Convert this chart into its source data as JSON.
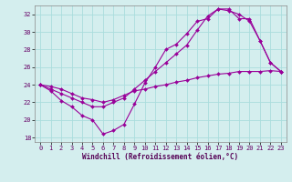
{
  "xlabel": "Windchill (Refroidissement éolien,°C)",
  "background_color": "#d4eeee",
  "line_color": "#990099",
  "grid_color": "#aadddd",
  "xlim": [
    -0.5,
    23.5
  ],
  "ylim": [
    17.5,
    33.0
  ],
  "yticks": [
    18,
    20,
    22,
    24,
    26,
    28,
    30,
    32
  ],
  "xticks": [
    0,
    1,
    2,
    3,
    4,
    5,
    6,
    7,
    8,
    9,
    10,
    11,
    12,
    13,
    14,
    15,
    16,
    17,
    18,
    19,
    20,
    21,
    22,
    23
  ],
  "series1_x": [
    0,
    1,
    2,
    3,
    4,
    5,
    6,
    7,
    8,
    9,
    10,
    11,
    12,
    13,
    14,
    15,
    16,
    17,
    18,
    19,
    20,
    21,
    22,
    23
  ],
  "series1_y": [
    24.0,
    23.3,
    22.2,
    21.5,
    20.5,
    20.0,
    18.4,
    18.8,
    19.5,
    21.8,
    24.2,
    26.0,
    28.0,
    28.6,
    29.8,
    31.2,
    31.5,
    32.6,
    32.6,
    31.5,
    31.5,
    29.0,
    26.5,
    25.5
  ],
  "series2_x": [
    0,
    1,
    2,
    3,
    4,
    5,
    6,
    7,
    8,
    9,
    10,
    11,
    12,
    13,
    14,
    15,
    16,
    17,
    18,
    19,
    20,
    21,
    22,
    23
  ],
  "series2_y": [
    24.0,
    23.8,
    23.5,
    23.0,
    22.5,
    22.3,
    22.0,
    22.3,
    22.8,
    23.3,
    23.5,
    23.8,
    24.0,
    24.3,
    24.5,
    24.8,
    25.0,
    25.2,
    25.3,
    25.5,
    25.5,
    25.5,
    25.6,
    25.5
  ],
  "series3_x": [
    0,
    1,
    2,
    3,
    4,
    5,
    6,
    7,
    8,
    9,
    10,
    11,
    12,
    13,
    14,
    15,
    16,
    17,
    18,
    19,
    20,
    21,
    22,
    23
  ],
  "series3_y": [
    24.0,
    23.5,
    23.0,
    22.5,
    22.0,
    21.5,
    21.5,
    22.0,
    22.5,
    23.5,
    24.5,
    25.5,
    26.5,
    27.5,
    28.5,
    30.2,
    31.8,
    32.6,
    32.4,
    32.0,
    31.2,
    29.0,
    26.5,
    25.5
  ],
  "ylabel_fontsize": 5.5,
  "xlabel_fontsize": 5.5,
  "tick_fontsize": 5.0,
  "marker_size": 2.0,
  "line_width": 0.8
}
